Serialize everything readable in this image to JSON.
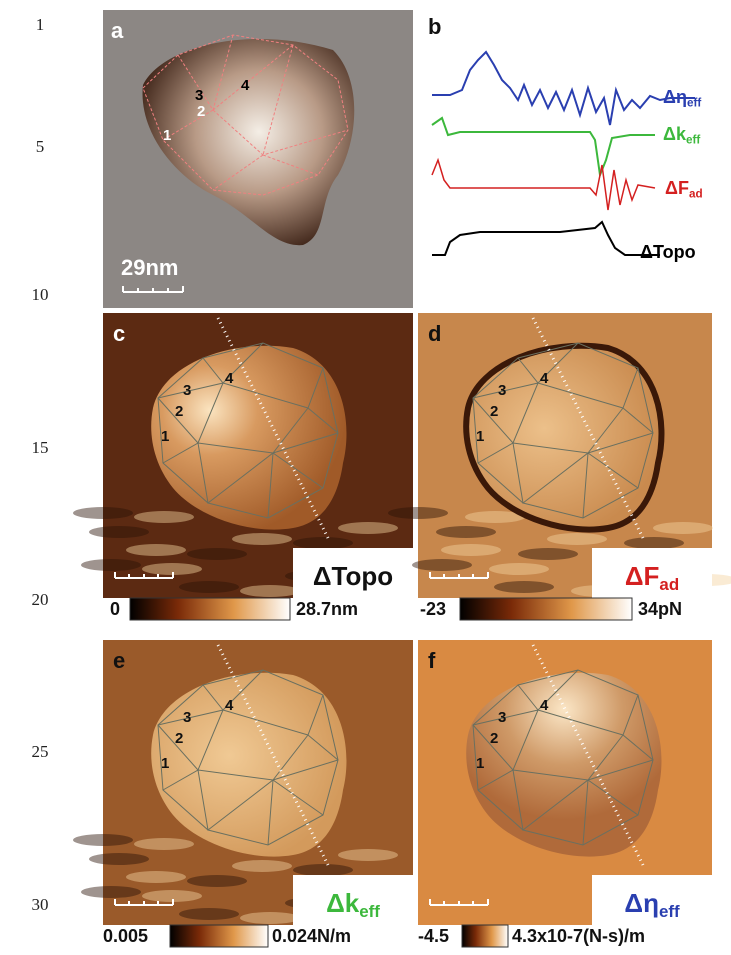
{
  "line_numbers": [
    "1",
    "5",
    "10",
    "15",
    "20",
    "25",
    "30"
  ],
  "panel_a": {
    "label": "a",
    "markers": [
      "1",
      "2",
      "3",
      "4"
    ],
    "scale_bar": "29nm"
  },
  "panel_b": {
    "label": "b",
    "traces": [
      {
        "symbol": "Δη",
        "subscript": "eff"
      },
      {
        "symbol": "Δk",
        "subscript": "eff"
      },
      {
        "symbol": "ΔF",
        "subscript": "ad"
      },
      {
        "symbol": "ΔTopo"
      }
    ]
  },
  "panel_c": {
    "label": "c",
    "markers": [
      "1",
      "2",
      "3",
      "4"
    ],
    "channel": {
      "symbol": "ΔTopo"
    },
    "colorbar": {
      "min": "0",
      "max": "28.7nm"
    }
  },
  "panel_d": {
    "label": "d",
    "markers": [
      "1",
      "2",
      "3",
      "4"
    ],
    "channel": {
      "symbol": "ΔF",
      "subscript": "ad"
    },
    "colorbar": {
      "min": "-23",
      "max": "34pN"
    }
  },
  "panel_e": {
    "label": "e",
    "markers": [
      "1",
      "2",
      "3",
      "4"
    ],
    "channel": {
      "symbol": "Δk",
      "subscript": "eff"
    },
    "colorbar": {
      "min": "0.005",
      "max": "0.024N/m"
    }
  },
  "panel_f": {
    "label": "f",
    "markers": [
      "1",
      "2",
      "3",
      "4"
    ],
    "channel": {
      "symbol": "Δη",
      "subscript": "eff"
    },
    "colorbar": {
      "min": "-4.5",
      "max": "4.3x10-7(N-s)/m"
    }
  }
}
